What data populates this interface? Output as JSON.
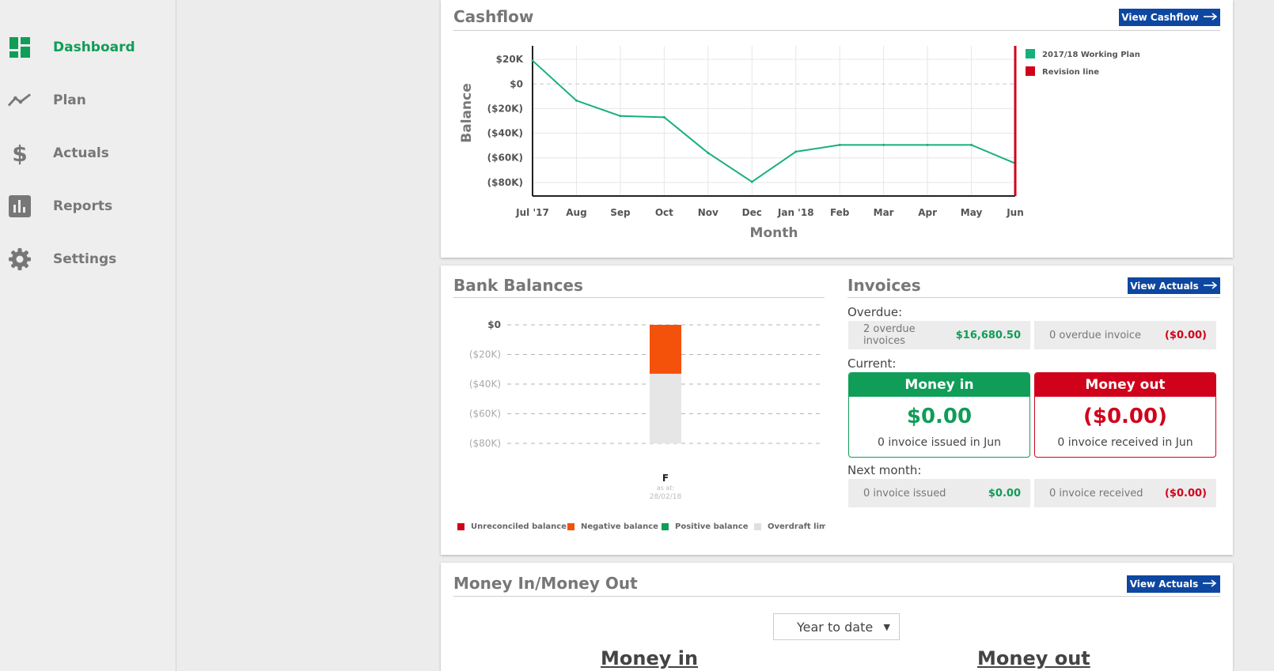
{
  "sidebar": {
    "items": [
      {
        "label": "Dashboard",
        "icon": "dashboard-icon",
        "active": true
      },
      {
        "label": "Plan",
        "icon": "trend-line-icon",
        "active": false
      },
      {
        "label": "Actuals",
        "icon": "dollar-icon",
        "active": false
      },
      {
        "label": "Reports",
        "icon": "bar-chart-icon",
        "active": false
      },
      {
        "label": "Settings",
        "icon": "gear-icon",
        "active": false
      }
    ]
  },
  "colors": {
    "brand_green": "#0f9d58",
    "plan_line": "#16b07c",
    "revision_red": "#d0021b",
    "negative_orange": "#f4510b",
    "overdraft_grey": "#e6e6e6",
    "button_blue": "#0d47a1"
  },
  "cashflow": {
    "title": "Cashflow",
    "button_label": "View Cashflow",
    "chart_data": {
      "type": "line",
      "categories": [
        "Jul '17",
        "Aug",
        "Sep",
        "Oct",
        "Nov",
        "Dec",
        "Jan '18",
        "Feb",
        "Mar",
        "Apr",
        "May",
        "Jun"
      ],
      "series": [
        {
          "name": "2017/18 Working Plan",
          "values": [
            19000,
            -13500,
            -26000,
            -27000,
            -56000,
            -79500,
            -55000,
            -49500,
            -49500,
            -49500,
            -49500,
            -64500
          ]
        }
      ],
      "revision_line": {
        "name": "Revision line",
        "at": "Jun"
      },
      "ylabel": "Balance",
      "xlabel": "Month",
      "ytick_labels": [
        "$20K",
        "$0",
        "($20K)",
        "($40K)",
        "($60K)",
        "($80K)"
      ],
      "yticks": [
        20000,
        0,
        -20000,
        -40000,
        -60000,
        -80000
      ],
      "ylim": [
        -91000,
        31000
      ],
      "grid": true,
      "legend_position": "right"
    }
  },
  "bank_balances": {
    "title": "Bank Balances",
    "chart_data": {
      "type": "bar",
      "categories": [
        "F"
      ],
      "series": [
        {
          "name": "Negative balance",
          "values": [
            -33000
          ]
        },
        {
          "name": "Overdraft limit",
          "values": [
            -80000
          ]
        }
      ],
      "ytick_labels": [
        "$0",
        "($20K)",
        "($40K)",
        "($60K)",
        "($80K)"
      ],
      "yticks": [
        0,
        -20000,
        -40000,
        -60000,
        -80000
      ],
      "ylim": [
        -80000,
        0
      ],
      "category_note": "as at:",
      "category_date": "28/02/18",
      "legend": [
        {
          "label": "Unreconciled balance",
          "color": "#d0021b"
        },
        {
          "label": "Negative balance",
          "color": "#f4510b"
        },
        {
          "label": "Positive balance",
          "color": "#0f9d58"
        },
        {
          "label": "Overdraft limit",
          "color": "#e0e0e0"
        }
      ]
    }
  },
  "invoices": {
    "title": "Invoices",
    "button_label": "View Actuals",
    "overdue_label": "Overdue:",
    "overdue": [
      {
        "desc": "2 overdue invoices",
        "amount": "$16,680.50"
      },
      {
        "desc": "0 overdue invoice",
        "amount": "($0.00)"
      }
    ],
    "current_label": "Current:",
    "money_in": {
      "title": "Money in",
      "amount": "$0.00",
      "sub": "0 invoice issued in Jun"
    },
    "money_out": {
      "title": "Money out",
      "amount": "($0.00)",
      "sub": "0 invoice received in Jun"
    },
    "next_month_label": "Next month:",
    "next_month": [
      {
        "desc": "0 invoice issued",
        "amount": "$0.00"
      },
      {
        "desc": "0 invoice received",
        "amount": "($0.00)"
      }
    ]
  },
  "money_in_out": {
    "title": "Money In/Money Out",
    "button_label": "View Actuals",
    "period_select": "Year to date",
    "col_in": "Money in",
    "col_out": "Money out"
  }
}
